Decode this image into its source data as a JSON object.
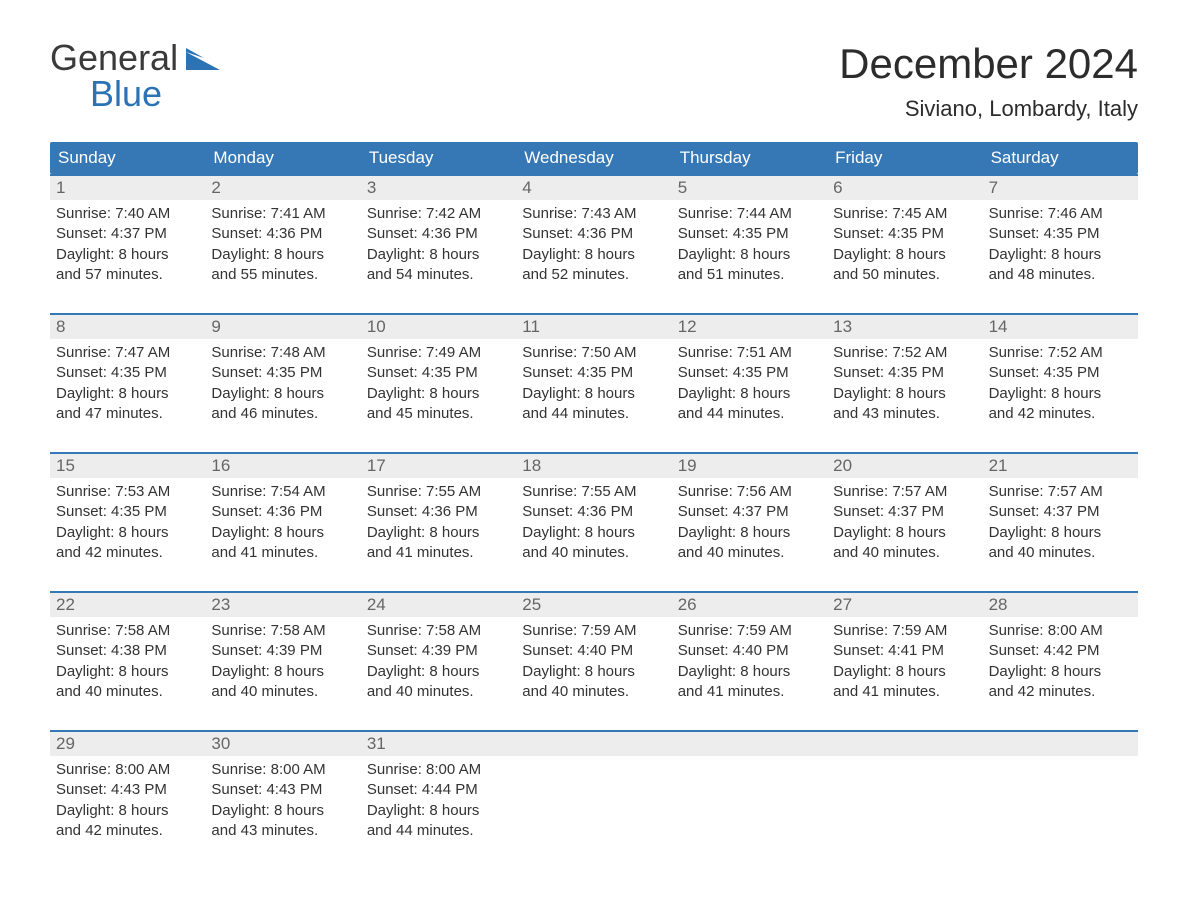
{
  "brand": {
    "word1": "General",
    "word2": "Blue"
  },
  "title": "December 2024",
  "subtitle": "Siviano, Lombardy, Italy",
  "colors": {
    "header_bg": "#3678b5",
    "header_text": "#ffffff",
    "daynum_bg": "#ededed",
    "daynum_text": "#666666",
    "body_text": "#333333",
    "accent": "#2b73b5",
    "page_bg": "#ffffff"
  },
  "days_of_week": [
    "Sunday",
    "Monday",
    "Tuesday",
    "Wednesday",
    "Thursday",
    "Friday",
    "Saturday"
  ],
  "weeks": [
    [
      {
        "num": "1",
        "sunrise": "Sunrise: 7:40 AM",
        "sunset": "Sunset: 4:37 PM",
        "dl1": "Daylight: 8 hours",
        "dl2": "and 57 minutes."
      },
      {
        "num": "2",
        "sunrise": "Sunrise: 7:41 AM",
        "sunset": "Sunset: 4:36 PM",
        "dl1": "Daylight: 8 hours",
        "dl2": "and 55 minutes."
      },
      {
        "num": "3",
        "sunrise": "Sunrise: 7:42 AM",
        "sunset": "Sunset: 4:36 PM",
        "dl1": "Daylight: 8 hours",
        "dl2": "and 54 minutes."
      },
      {
        "num": "4",
        "sunrise": "Sunrise: 7:43 AM",
        "sunset": "Sunset: 4:36 PM",
        "dl1": "Daylight: 8 hours",
        "dl2": "and 52 minutes."
      },
      {
        "num": "5",
        "sunrise": "Sunrise: 7:44 AM",
        "sunset": "Sunset: 4:35 PM",
        "dl1": "Daylight: 8 hours",
        "dl2": "and 51 minutes."
      },
      {
        "num": "6",
        "sunrise": "Sunrise: 7:45 AM",
        "sunset": "Sunset: 4:35 PM",
        "dl1": "Daylight: 8 hours",
        "dl2": "and 50 minutes."
      },
      {
        "num": "7",
        "sunrise": "Sunrise: 7:46 AM",
        "sunset": "Sunset: 4:35 PM",
        "dl1": "Daylight: 8 hours",
        "dl2": "and 48 minutes."
      }
    ],
    [
      {
        "num": "8",
        "sunrise": "Sunrise: 7:47 AM",
        "sunset": "Sunset: 4:35 PM",
        "dl1": "Daylight: 8 hours",
        "dl2": "and 47 minutes."
      },
      {
        "num": "9",
        "sunrise": "Sunrise: 7:48 AM",
        "sunset": "Sunset: 4:35 PM",
        "dl1": "Daylight: 8 hours",
        "dl2": "and 46 minutes."
      },
      {
        "num": "10",
        "sunrise": "Sunrise: 7:49 AM",
        "sunset": "Sunset: 4:35 PM",
        "dl1": "Daylight: 8 hours",
        "dl2": "and 45 minutes."
      },
      {
        "num": "11",
        "sunrise": "Sunrise: 7:50 AM",
        "sunset": "Sunset: 4:35 PM",
        "dl1": "Daylight: 8 hours",
        "dl2": "and 44 minutes."
      },
      {
        "num": "12",
        "sunrise": "Sunrise: 7:51 AM",
        "sunset": "Sunset: 4:35 PM",
        "dl1": "Daylight: 8 hours",
        "dl2": "and 44 minutes."
      },
      {
        "num": "13",
        "sunrise": "Sunrise: 7:52 AM",
        "sunset": "Sunset: 4:35 PM",
        "dl1": "Daylight: 8 hours",
        "dl2": "and 43 minutes."
      },
      {
        "num": "14",
        "sunrise": "Sunrise: 7:52 AM",
        "sunset": "Sunset: 4:35 PM",
        "dl1": "Daylight: 8 hours",
        "dl2": "and 42 minutes."
      }
    ],
    [
      {
        "num": "15",
        "sunrise": "Sunrise: 7:53 AM",
        "sunset": "Sunset: 4:35 PM",
        "dl1": "Daylight: 8 hours",
        "dl2": "and 42 minutes."
      },
      {
        "num": "16",
        "sunrise": "Sunrise: 7:54 AM",
        "sunset": "Sunset: 4:36 PM",
        "dl1": "Daylight: 8 hours",
        "dl2": "and 41 minutes."
      },
      {
        "num": "17",
        "sunrise": "Sunrise: 7:55 AM",
        "sunset": "Sunset: 4:36 PM",
        "dl1": "Daylight: 8 hours",
        "dl2": "and 41 minutes."
      },
      {
        "num": "18",
        "sunrise": "Sunrise: 7:55 AM",
        "sunset": "Sunset: 4:36 PM",
        "dl1": "Daylight: 8 hours",
        "dl2": "and 40 minutes."
      },
      {
        "num": "19",
        "sunrise": "Sunrise: 7:56 AM",
        "sunset": "Sunset: 4:37 PM",
        "dl1": "Daylight: 8 hours",
        "dl2": "and 40 minutes."
      },
      {
        "num": "20",
        "sunrise": "Sunrise: 7:57 AM",
        "sunset": "Sunset: 4:37 PM",
        "dl1": "Daylight: 8 hours",
        "dl2": "and 40 minutes."
      },
      {
        "num": "21",
        "sunrise": "Sunrise: 7:57 AM",
        "sunset": "Sunset: 4:37 PM",
        "dl1": "Daylight: 8 hours",
        "dl2": "and 40 minutes."
      }
    ],
    [
      {
        "num": "22",
        "sunrise": "Sunrise: 7:58 AM",
        "sunset": "Sunset: 4:38 PM",
        "dl1": "Daylight: 8 hours",
        "dl2": "and 40 minutes."
      },
      {
        "num": "23",
        "sunrise": "Sunrise: 7:58 AM",
        "sunset": "Sunset: 4:39 PM",
        "dl1": "Daylight: 8 hours",
        "dl2": "and 40 minutes."
      },
      {
        "num": "24",
        "sunrise": "Sunrise: 7:58 AM",
        "sunset": "Sunset: 4:39 PM",
        "dl1": "Daylight: 8 hours",
        "dl2": "and 40 minutes."
      },
      {
        "num": "25",
        "sunrise": "Sunrise: 7:59 AM",
        "sunset": "Sunset: 4:40 PM",
        "dl1": "Daylight: 8 hours",
        "dl2": "and 40 minutes."
      },
      {
        "num": "26",
        "sunrise": "Sunrise: 7:59 AM",
        "sunset": "Sunset: 4:40 PM",
        "dl1": "Daylight: 8 hours",
        "dl2": "and 41 minutes."
      },
      {
        "num": "27",
        "sunrise": "Sunrise: 7:59 AM",
        "sunset": "Sunset: 4:41 PM",
        "dl1": "Daylight: 8 hours",
        "dl2": "and 41 minutes."
      },
      {
        "num": "28",
        "sunrise": "Sunrise: 8:00 AM",
        "sunset": "Sunset: 4:42 PM",
        "dl1": "Daylight: 8 hours",
        "dl2": "and 42 minutes."
      }
    ],
    [
      {
        "num": "29",
        "sunrise": "Sunrise: 8:00 AM",
        "sunset": "Sunset: 4:43 PM",
        "dl1": "Daylight: 8 hours",
        "dl2": "and 42 minutes."
      },
      {
        "num": "30",
        "sunrise": "Sunrise: 8:00 AM",
        "sunset": "Sunset: 4:43 PM",
        "dl1": "Daylight: 8 hours",
        "dl2": "and 43 minutes."
      },
      {
        "num": "31",
        "sunrise": "Sunrise: 8:00 AM",
        "sunset": "Sunset: 4:44 PM",
        "dl1": "Daylight: 8 hours",
        "dl2": "and 44 minutes."
      },
      {
        "num": "",
        "sunrise": "",
        "sunset": "",
        "dl1": "",
        "dl2": ""
      },
      {
        "num": "",
        "sunrise": "",
        "sunset": "",
        "dl1": "",
        "dl2": ""
      },
      {
        "num": "",
        "sunrise": "",
        "sunset": "",
        "dl1": "",
        "dl2": ""
      },
      {
        "num": "",
        "sunrise": "",
        "sunset": "",
        "dl1": "",
        "dl2": ""
      }
    ]
  ]
}
